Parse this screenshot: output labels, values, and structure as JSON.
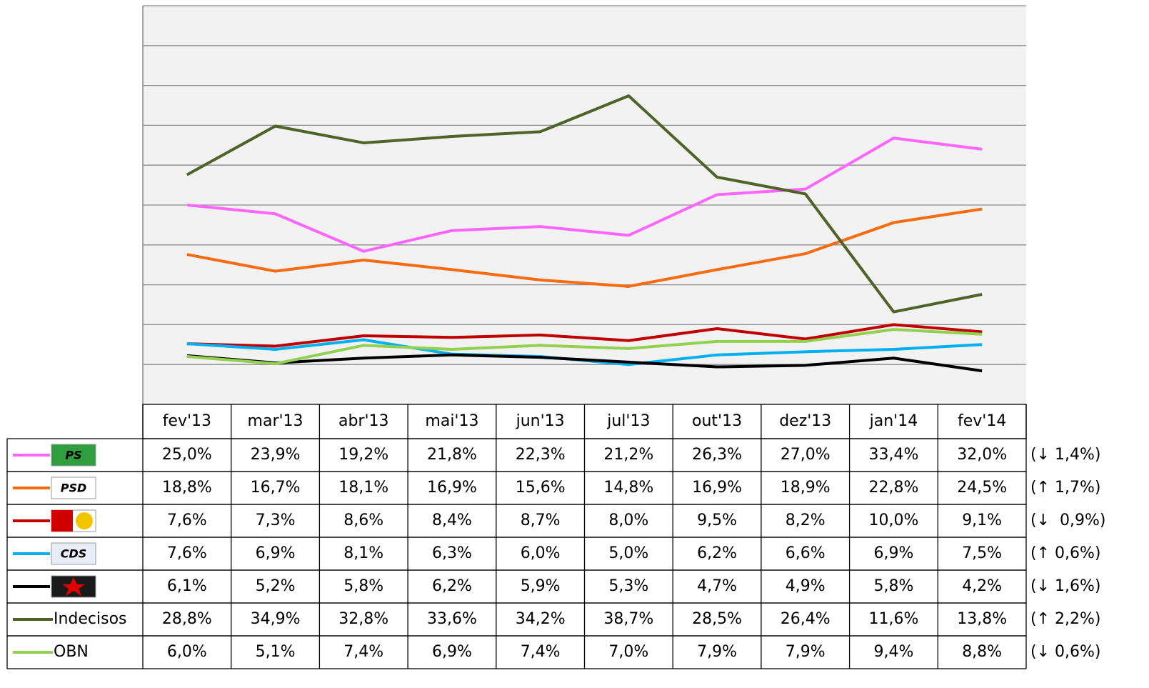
{
  "chart_data": {
    "type": "line",
    "categories": [
      "fev'13",
      "mar'13",
      "abr'13",
      "mai'13",
      "jun'13",
      "jul'13",
      "out'13",
      "dez'13",
      "jan'14",
      "fev'14"
    ],
    "ylim": [
      0,
      50
    ],
    "yticks": [
      0,
      5,
      10,
      15,
      20,
      25,
      30,
      35,
      40,
      45,
      50
    ],
    "grid": true,
    "series": [
      {
        "name": "PS",
        "color": "#ff66ff",
        "values": [
          25.0,
          23.9,
          19.2,
          21.8,
          22.3,
          21.2,
          26.3,
          27.0,
          33.4,
          32.0
        ],
        "value_labels": [
          "25,0%",
          "23,9%",
          "19,2%",
          "21,8%",
          "22,3%",
          "21,2%",
          "26,3%",
          "27,0%",
          "33,4%",
          "32,0%"
        ],
        "change": "(↓ 1,4%)"
      },
      {
        "name": "PSD",
        "color": "#f96b10",
        "values": [
          18.8,
          16.7,
          18.1,
          16.9,
          15.6,
          14.8,
          16.9,
          18.9,
          22.8,
          24.5
        ],
        "value_labels": [
          "18,8%",
          "16,7%",
          "18,1%",
          "16,9%",
          "15,6%",
          "14,8%",
          "16,9%",
          "18,9%",
          "22,8%",
          "24,5%"
        ],
        "change": "(↑ 1,7%)"
      },
      {
        "name": null,
        "color": "#c00000",
        "values": [
          7.6,
          7.3,
          8.6,
          8.4,
          8.7,
          8.0,
          9.5,
          8.2,
          10.0,
          9.1
        ],
        "value_labels": [
          "7,6%",
          "7,3%",
          "8,6%",
          "8,4%",
          "8,7%",
          "8,0%",
          "9,5%",
          "8,2%",
          "10,0%",
          "9,1%"
        ],
        "change": "(↓  0,9%)"
      },
      {
        "name": "CDS",
        "color": "#00b0f0",
        "values": [
          7.6,
          6.9,
          8.1,
          6.3,
          6.0,
          5.0,
          6.2,
          6.6,
          6.9,
          7.5
        ],
        "value_labels": [
          "7,6%",
          "6,9%",
          "8,1%",
          "6,3%",
          "6,0%",
          "5,0%",
          "6,2%",
          "6,6%",
          "6,9%",
          "7,5%"
        ],
        "change": "(↑ 0,6%)"
      },
      {
        "name": null,
        "color": "#000000",
        "values": [
          6.1,
          5.2,
          5.8,
          6.2,
          5.9,
          5.3,
          4.7,
          4.9,
          5.8,
          4.2
        ],
        "value_labels": [
          "6,1%",
          "5,2%",
          "5,8%",
          "6,2%",
          "5,9%",
          "5,3%",
          "4,7%",
          "4,9%",
          "5,8%",
          "4,2%"
        ],
        "change": "(↓ 1,6%)"
      },
      {
        "name": "Indecisos",
        "color": "#4f6228",
        "values": [
          28.8,
          34.9,
          32.8,
          33.6,
          34.2,
          38.7,
          28.5,
          26.4,
          11.6,
          13.8
        ],
        "value_labels": [
          "28,8%",
          "34,9%",
          "32,8%",
          "33,6%",
          "34,2%",
          "38,7%",
          "28,5%",
          "26,4%",
          "11,6%",
          "13,8%"
        ],
        "change": "(↑ 2,2%)"
      },
      {
        "name": "OBN",
        "color": "#92d050",
        "values": [
          6.0,
          5.1,
          7.4,
          6.9,
          7.4,
          7.0,
          7.9,
          7.9,
          9.4,
          8.8
        ],
        "value_labels": [
          "6,0%",
          "5,1%",
          "7,4%",
          "6,9%",
          "7,4%",
          "7,0%",
          "7,9%",
          "7,9%",
          "9,4%",
          "8,8%"
        ],
        "change": "(↓ 0,6%)"
      }
    ]
  }
}
